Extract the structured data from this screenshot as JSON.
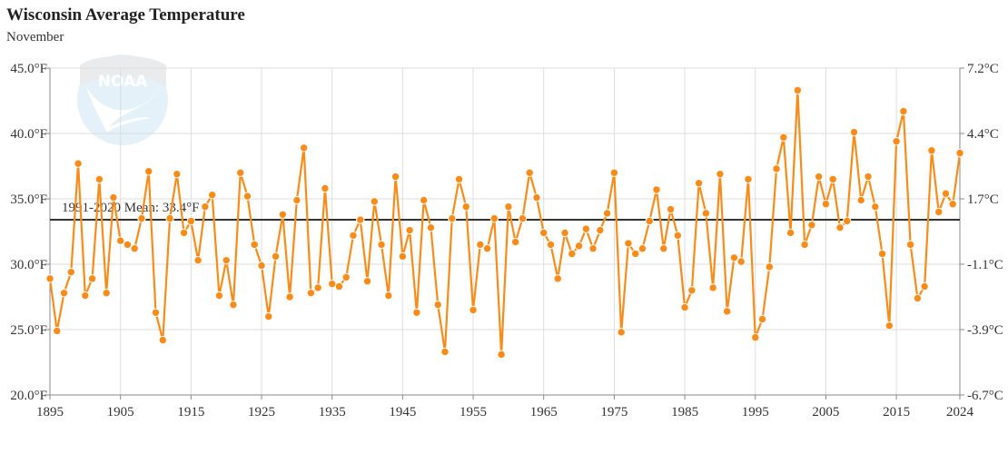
{
  "chart_data": {
    "type": "line",
    "title": "Wisconsin Average Temperature",
    "subtitle": "November",
    "xlabel": "",
    "ylabel": "",
    "xlim": [
      1895,
      2024
    ],
    "ylim": [
      20,
      45
    ],
    "grid": true,
    "x_ticks": [
      "1895",
      "1905",
      "1915",
      "1925",
      "1935",
      "1945",
      "1955",
      "1965",
      "1975",
      "1985",
      "1995",
      "2005",
      "2015",
      "2024"
    ],
    "y_ticks_left": [
      "45.0°F",
      "40.0°F",
      "35.0°F",
      "30.0°F",
      "25.0°F",
      "20.0°F"
    ],
    "y_ticks_right": [
      "7.2°C",
      "4.4°C",
      "1.7°C",
      "-1.1°C",
      "-3.9°C",
      "-6.7°C"
    ],
    "y_tick_values": [
      45,
      40,
      35,
      30,
      25,
      20
    ],
    "mean": {
      "label": "1991-2020 Mean: 33.4°F",
      "value": 33.4
    },
    "series": [
      {
        "name": "Temperature",
        "color": "#fb8b17",
        "start_year": 1895,
        "values": [
          28.9,
          24.9,
          27.8,
          29.4,
          37.7,
          27.6,
          28.9,
          36.5,
          27.8,
          35.1,
          31.8,
          31.5,
          31.2,
          33.5,
          37.1,
          26.3,
          24.2,
          33.5,
          36.9,
          32.4,
          33.3,
          30.3,
          34.4,
          35.3,
          27.6,
          30.3,
          26.9,
          37.0,
          35.2,
          31.5,
          29.9,
          26.0,
          30.6,
          33.8,
          27.5,
          34.9,
          38.9,
          27.8,
          28.2,
          35.8,
          28.5,
          28.3,
          29.0,
          32.2,
          33.4,
          28.7,
          34.8,
          31.5,
          27.6,
          36.7,
          30.6,
          32.6,
          26.3,
          34.9,
          32.8,
          26.9,
          23.3,
          33.5,
          36.5,
          34.4,
          26.5,
          31.5,
          31.2,
          33.5,
          23.1,
          34.4,
          31.7,
          33.5,
          37.0,
          35.1,
          32.4,
          31.5,
          28.9,
          32.4,
          30.8,
          31.4,
          32.7,
          31.2,
          32.6,
          33.9,
          37.0,
          24.8,
          31.6,
          30.8,
          31.2,
          33.3,
          35.7,
          31.2,
          34.2,
          32.2,
          26.7,
          28.0,
          36.2,
          33.9,
          28.2,
          36.9,
          26.4,
          30.5,
          30.2,
          36.5,
          24.4,
          25.8,
          29.8,
          37.3,
          39.7,
          32.4,
          43.3,
          31.5,
          33.0,
          36.7,
          34.6,
          36.5,
          32.8,
          33.3,
          40.1,
          34.9,
          36.7,
          34.4,
          30.8,
          25.3,
          39.4,
          41.7,
          31.5,
          27.4,
          28.3,
          38.7,
          34.0,
          35.4,
          34.6,
          38.5
        ]
      }
    ],
    "logo_text": "NOAA"
  }
}
